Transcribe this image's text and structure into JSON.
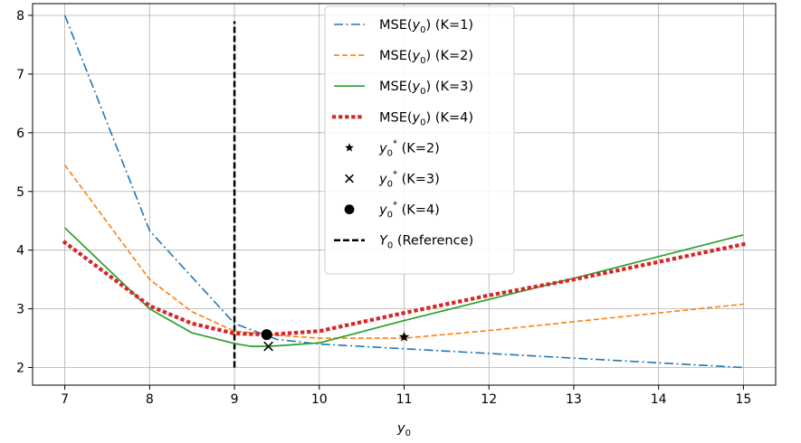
{
  "chart_data": {
    "type": "line",
    "xlabel": "y",
    "xlabel_sub": "0",
    "ylabel": "",
    "xlim": [
      6.62,
      15.38
    ],
    "ylim": [
      1.7,
      8.2
    ],
    "xticks": [
      7,
      8,
      9,
      10,
      11,
      12,
      13,
      14,
      15
    ],
    "yticks": [
      2,
      3,
      4,
      5,
      6,
      7,
      8
    ],
    "grid": true,
    "legend_position": "top-center",
    "series": [
      {
        "name": "MSE(y0) (K=1)",
        "label_prefix": "MSE(y",
        "label_sub": "0",
        "label_suffix": ") (K=1)",
        "color": "#1f77b4",
        "linestyle": "dashdot",
        "x": [
          7,
          8,
          9,
          9.5,
          10,
          11,
          12,
          13,
          14,
          15
        ],
        "y": [
          8.0,
          4.33,
          2.75,
          2.48,
          2.4,
          2.32,
          2.24,
          2.16,
          2.08,
          2.0
        ]
      },
      {
        "name": "MSE(y0) (K=2)",
        "label_prefix": "MSE(y",
        "label_sub": "0",
        "label_suffix": ") (K=2)",
        "color": "#ff7f0e",
        "linestyle": "dashed",
        "x": [
          7,
          8,
          8.5,
          9,
          9.5,
          10,
          11,
          12,
          13,
          14,
          15
        ],
        "y": [
          5.45,
          3.5,
          2.95,
          2.62,
          2.55,
          2.5,
          2.5,
          2.63,
          2.78,
          2.93,
          3.08
        ]
      },
      {
        "name": "MSE(y0) (K=3)",
        "label_prefix": "MSE(y",
        "label_sub": "0",
        "label_suffix": ") (K=3)",
        "color": "#2ca02c",
        "linestyle": "solid",
        "x": [
          7,
          8,
          8.5,
          9,
          9.2,
          9.4,
          9.6,
          10,
          11,
          12,
          13,
          14,
          15
        ],
        "y": [
          4.38,
          3.0,
          2.59,
          2.41,
          2.36,
          2.36,
          2.38,
          2.42,
          2.8,
          3.16,
          3.52,
          3.89,
          4.26
        ]
      },
      {
        "name": "MSE(y0) (K=4)",
        "label_prefix": "MSE(y",
        "label_sub": "0",
        "label_suffix": ") (K=4)",
        "color": "#d62728",
        "linestyle": "dotted",
        "x": [
          7,
          8,
          8.5,
          9,
          9.4,
          10,
          11,
          12,
          13,
          14,
          15
        ],
        "y": [
          4.13,
          3.05,
          2.75,
          2.58,
          2.56,
          2.62,
          2.93,
          3.23,
          3.5,
          3.8,
          4.1
        ]
      }
    ],
    "markers": [
      {
        "name": "y0* (K=2)",
        "label_prefix": "y",
        "label_sub": "0",
        "label_sup": "*",
        "label_suffix": " (K=2)",
        "shape": "star",
        "x": 11.0,
        "y": 2.52
      },
      {
        "name": "y0* (K=3)",
        "label_prefix": "y",
        "label_sub": "0",
        "label_sup": "*",
        "label_suffix": " (K=3)",
        "shape": "x",
        "x": 9.4,
        "y": 2.36
      },
      {
        "name": "y0* (K=4)",
        "label_prefix": "y",
        "label_sub": "0",
        "label_sup": "*",
        "label_suffix": " (K=4)",
        "shape": "circle",
        "x": 9.38,
        "y": 2.56
      }
    ],
    "reference": {
      "name": "Y0 (Reference)",
      "label_prefix": "Y",
      "label_sub": "0",
      "label_suffix": " (Reference)",
      "x": 9.0,
      "y_range": [
        2.0,
        7.9
      ],
      "color": "#000000",
      "linestyle": "dashed"
    }
  }
}
